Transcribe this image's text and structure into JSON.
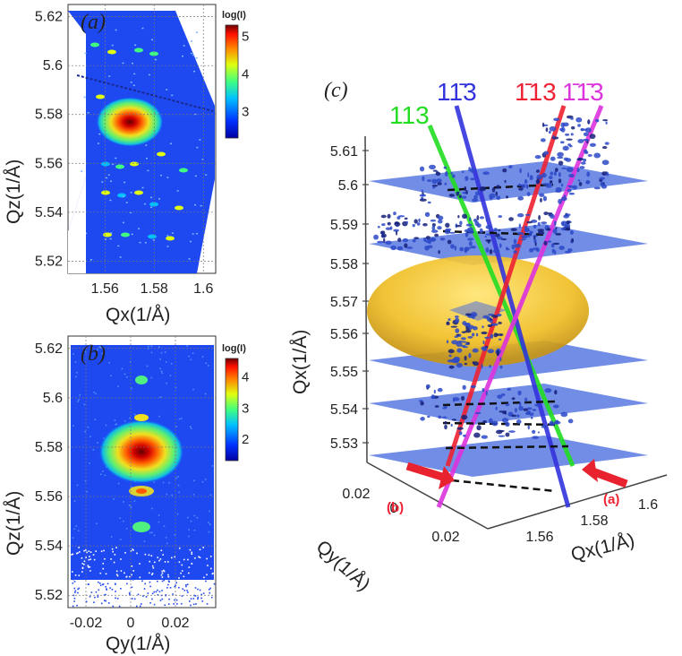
{
  "chart_data": [
    {
      "panel": "(a)",
      "type": "heatmap",
      "xlabel": "Qx(1/Å)",
      "ylabel": "Qz(1/Å)",
      "xlim": [
        1.545,
        1.605
      ],
      "ylim": [
        5.515,
        5.625
      ],
      "xticks": [
        "1.56",
        "1.58",
        "1.6"
      ],
      "xtick_values": [
        1.56,
        1.58,
        1.6
      ],
      "yticks": [
        "5.52",
        "5.54",
        "5.56",
        "5.58",
        "5.6",
        "5.62"
      ],
      "ytick_values": [
        5.52,
        5.54,
        5.56,
        5.58,
        5.6,
        5.62
      ],
      "colorbar": {
        "label": "log(I)",
        "ticks": [
          "5",
          "4",
          "3"
        ],
        "tick_values": [
          5,
          4,
          3
        ],
        "range": [
          2.3,
          5.3
        ]
      },
      "grid": true,
      "peak": {
        "qx": 1.572,
        "qz": 5.577,
        "logI": 5
      }
    },
    {
      "panel": "(b)",
      "type": "heatmap",
      "xlabel": "Qy(1/Å)",
      "ylabel": "Qz(1/Å)",
      "xlim": [
        -0.028,
        0.038
      ],
      "ylim": [
        5.515,
        5.625
      ],
      "xticks": [
        "-0.02",
        "0",
        "0.02"
      ],
      "xtick_values": [
        -0.02,
        0,
        0.02
      ],
      "yticks": [
        "5.52",
        "5.54",
        "5.56",
        "5.58",
        "5.6",
        "5.62"
      ],
      "ytick_values": [
        5.52,
        5.54,
        5.56,
        5.58,
        5.6,
        5.62
      ],
      "colorbar": {
        "label": "log(I)",
        "ticks": [
          "4",
          "3",
          "2"
        ],
        "tick_values": [
          4,
          3,
          2
        ],
        "range": [
          1.3,
          4.6
        ]
      },
      "grid": true,
      "peak": {
        "qy": 0.003,
        "qz": 5.578,
        "logI": 4.4
      }
    },
    {
      "panel": "(c)",
      "type": "scatter",
      "xlabel": "Qx(1/Å)",
      "ylabel": "Qz(1/Å)",
      "ylabel2": "Qy(1/Å)",
      "zticks": [
        "5.61",
        "5.6",
        "5.59",
        "5.58",
        "5.57",
        "5.56",
        "5.55",
        "5.54",
        "5.53"
      ],
      "qxticks": [
        "1.56",
        "1.58",
        "1.6"
      ],
      "qyticks": [
        "0.02",
        "0",
        "0.02"
      ],
      "reflections": [
        {
          "label": "113",
          "color": "#22dd22"
        },
        {
          "label": "1̃1̃3",
          "display": "11̄3",
          "color": "#3333dd"
        },
        {
          "label": "1̄13",
          "color": "#ee2233"
        },
        {
          "label": "1̄1̄3",
          "color": "#dd33dd"
        }
      ],
      "arrows": [
        "(b)",
        "(a)"
      ]
    }
  ],
  "colors": {
    "slice_plane": "#4f70e0",
    "ellipsoid": "#f2c428",
    "arrow": "#e8232f"
  }
}
